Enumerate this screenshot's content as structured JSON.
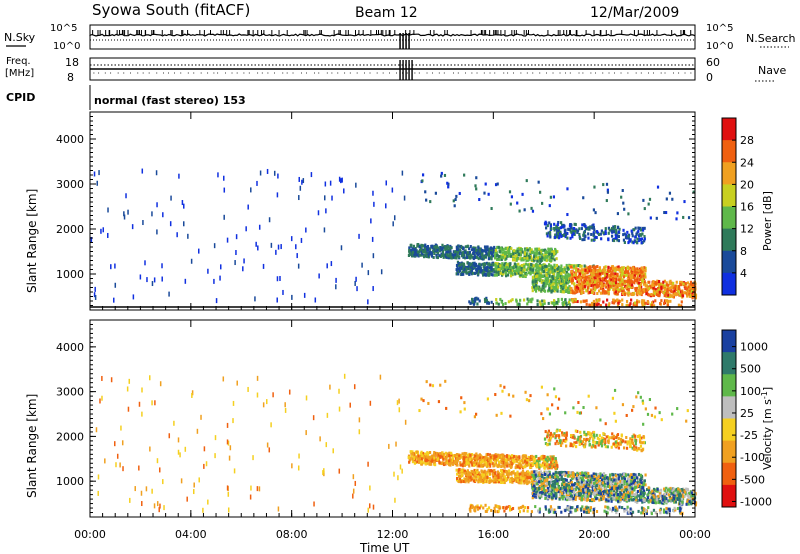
{
  "header": {
    "title": "Syowa South (fitACF)",
    "beam": "Beam 12",
    "date": "12/Mar/2009"
  },
  "top_panels": {
    "nsky_label": "N.Sky",
    "nsky_ticks_left": [
      "10^5",
      "10^0"
    ],
    "nsky_ticks_right": [
      "10^5",
      "10^0"
    ],
    "nsearch_label": "N.Search",
    "freq_label_1": "Freq.",
    "freq_label_2": "[MHz]",
    "freq_ticks": [
      "18",
      "8"
    ],
    "nave_label": "Nave",
    "nave_ticks": [
      "60",
      "0"
    ],
    "cpid_label": "CPID",
    "cpid_text": "normal (fast stereo) 153"
  },
  "colors": {
    "power": [
      "#1030e0",
      "#1a4a9a",
      "#2f7a5a",
      "#5fb84a",
      "#c8d020",
      "#f0a020",
      "#f06010",
      "#e01010"
    ],
    "velocity": [
      "#1a40a0",
      "#2f7a6a",
      "#5fb84a",
      "#bebebe",
      "#f5d020",
      "#f0a020",
      "#f06010",
      "#e01010"
    ]
  },
  "chart_data": [
    {
      "type": "heatmap",
      "name": "power",
      "ylabel": "Slant Range [km]",
      "yticks": [
        "1000",
        "2000",
        "3000",
        "4000"
      ],
      "ylim": [
        200,
        4600
      ],
      "xlim": [
        0,
        24
      ],
      "colorbar": {
        "label": "Power [dB]",
        "ticks": [
          "4",
          "8",
          "12",
          "16",
          "20",
          "24",
          "28"
        ],
        "range": [
          0,
          32
        ]
      },
      "echo_regions": [
        {
          "t": [
            12.6,
            18.5
          ],
          "range": [
            1300,
            1700
          ],
          "level": "8-12 dB"
        },
        {
          "t": [
            14.5,
            22.0
          ],
          "range": [
            900,
            1300
          ],
          "level": "12-20 dB"
        },
        {
          "t": [
            17.5,
            24.0
          ],
          "range": [
            500,
            1000
          ],
          "level": "20-32 dB"
        },
        {
          "t": [
            18.0,
            22.0
          ],
          "range": [
            1700,
            2200
          ],
          "level": "4-12 dB"
        }
      ]
    },
    {
      "type": "heatmap",
      "name": "velocity",
      "ylabel": "Slant Range [km]",
      "xlabel": "Time UT",
      "xticks": [
        "00:00",
        "04:00",
        "08:00",
        "12:00",
        "16:00",
        "20:00",
        "00:00"
      ],
      "yticks": [
        "1000",
        "2000",
        "3000",
        "4000"
      ],
      "ylim": [
        200,
        4600
      ],
      "xlim": [
        0,
        24
      ],
      "colorbar": {
        "label": "Velocity  [m s^-1]",
        "ticks": [
          "1000",
          "500",
          "100",
          "25",
          "-25",
          "-100",
          "-500",
          "-1000"
        ]
      },
      "echo_regions": [
        {
          "t": [
            12.6,
            17.0
          ],
          "range": [
            1200,
            1700
          ],
          "level": "-100 to -500 m/s"
        },
        {
          "t": [
            17.0,
            24.0
          ],
          "range": [
            500,
            1300
          ],
          "level": "100 to 1000 m/s"
        }
      ]
    }
  ],
  "x_axis": {
    "ticks": [
      "00:00",
      "04:00",
      "08:00",
      "12:00",
      "16:00",
      "20:00",
      "00:00"
    ],
    "label": "Time UT"
  }
}
